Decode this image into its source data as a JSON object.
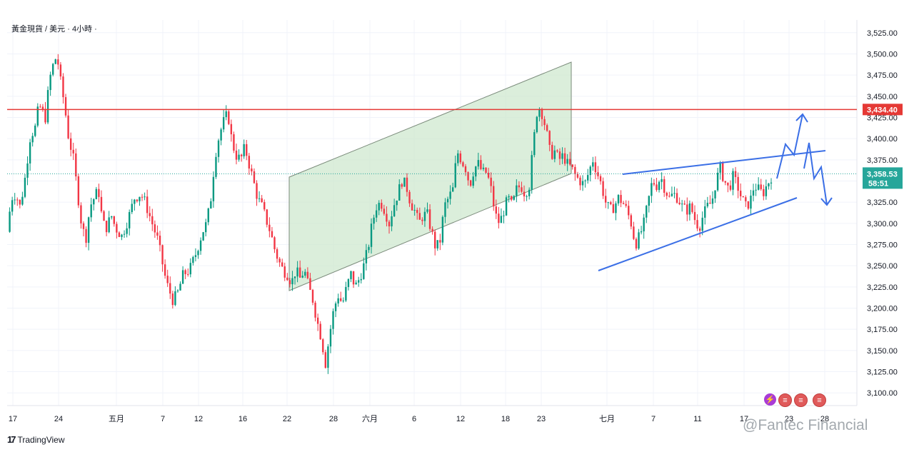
{
  "header": {
    "symbol_title": "黃金現貨 / 美元 · 4小時 ·"
  },
  "branding": {
    "logo_text": "TradingView",
    "watermark": "@Fantec Financial"
  },
  "chart_data": {
    "type": "candlestick",
    "ylim": [
      3085,
      3540
    ],
    "y_ticks": [
      3100,
      3125,
      3150,
      3175,
      3200,
      3225,
      3250,
      3275,
      3300,
      3325,
      3350,
      3375,
      3400,
      3425,
      3450,
      3475,
      3500,
      3525
    ],
    "y_tick_labels": [
      "3,100.00",
      "3,125.00",
      "3,150.00",
      "3,175.00",
      "3,200.00",
      "3,225.00",
      "3,250.00",
      "3,275.00",
      "3,300.00",
      "3,325.00",
      "3,350.00",
      "3,375.00",
      "3,400.00",
      "3,425.00",
      "3,450.00",
      "3,475.00",
      "3,500.00",
      "3,525.00"
    ],
    "x_ticks": [
      "17",
      "24",
      "五月",
      "7",
      "12",
      "16",
      "22",
      "28",
      "六月",
      "6",
      "12",
      "18",
      "23",
      "七月",
      "7",
      "11",
      "17",
      "23",
      "28"
    ],
    "grid": true,
    "price_path": [
      [
        0,
        3290
      ],
      [
        4,
        3330
      ],
      [
        8,
        3335
      ],
      [
        12,
        3320
      ],
      [
        16,
        3345
      ],
      [
        22,
        3405
      ],
      [
        26,
        3410
      ],
      [
        30,
        3440
      ],
      [
        36,
        3425
      ],
      [
        40,
        3470
      ],
      [
        44,
        3490
      ],
      [
        47,
        3498
      ],
      [
        50,
        3470
      ],
      [
        54,
        3440
      ],
      [
        58,
        3400
      ],
      [
        62,
        3380
      ],
      [
        66,
        3340
      ],
      [
        70,
        3300
      ],
      [
        74,
        3280
      ],
      [
        78,
        3320
      ],
      [
        82,
        3330
      ],
      [
        86,
        3340
      ],
      [
        90,
        3300
      ],
      [
        94,
        3295
      ],
      [
        98,
        3310
      ],
      [
        102,
        3295
      ],
      [
        108,
        3285
      ],
      [
        114,
        3305
      ],
      [
        120,
        3330
      ],
      [
        126,
        3335
      ],
      [
        130,
        3325
      ],
      [
        134,
        3310
      ],
      [
        138,
        3295
      ],
      [
        142,
        3280
      ],
      [
        146,
        3255
      ],
      [
        150,
        3230
      ],
      [
        156,
        3210
      ],
      [
        160,
        3215
      ],
      [
        166,
        3240
      ],
      [
        172,
        3245
      ],
      [
        178,
        3265
      ],
      [
        184,
        3290
      ],
      [
        188,
        3300
      ],
      [
        192,
        3330
      ],
      [
        196,
        3380
      ],
      [
        200,
        3405
      ],
      [
        204,
        3420
      ],
      [
        208,
        3430
      ],
      [
        212,
        3395
      ],
      [
        216,
        3380
      ],
      [
        220,
        3375
      ],
      [
        224,
        3390
      ],
      [
        228,
        3370
      ],
      [
        232,
        3350
      ],
      [
        236,
        3330
      ],
      [
        240,
        3320
      ],
      [
        244,
        3305
      ],
      [
        248,
        3290
      ],
      [
        252,
        3270
      ],
      [
        256,
        3255
      ],
      [
        260,
        3245
      ],
      [
        264,
        3240
      ],
      [
        268,
        3230
      ],
      [
        272,
        3245
      ],
      [
        276,
        3235
      ],
      [
        280,
        3245
      ],
      [
        284,
        3225
      ],
      [
        288,
        3210
      ],
      [
        292,
        3185
      ],
      [
        296,
        3165
      ],
      [
        300,
        3135
      ],
      [
        304,
        3170
      ],
      [
        308,
        3200
      ],
      [
        312,
        3215
      ],
      [
        316,
        3205
      ],
      [
        320,
        3225
      ],
      [
        324,
        3240
      ],
      [
        328,
        3225
      ],
      [
        332,
        3235
      ],
      [
        336,
        3250
      ],
      [
        340,
        3270
      ],
      [
        344,
        3300
      ],
      [
        348,
        3320
      ],
      [
        352,
        3325
      ],
      [
        356,
        3315
      ],
      [
        360,
        3300
      ],
      [
        364,
        3320
      ],
      [
        368,
        3335
      ],
      [
        372,
        3350
      ],
      [
        376,
        3345
      ],
      [
        380,
        3325
      ],
      [
        384,
        3315
      ],
      [
        388,
        3300
      ],
      [
        392,
        3310
      ],
      [
        396,
        3310
      ],
      [
        400,
        3290
      ],
      [
        404,
        3270
      ],
      [
        408,
        3280
      ],
      [
        412,
        3320
      ],
      [
        416,
        3330
      ],
      [
        420,
        3340
      ],
      [
        424,
        3385
      ],
      [
        428,
        3375
      ],
      [
        432,
        3365
      ],
      [
        436,
        3345
      ],
      [
        440,
        3365
      ],
      [
        444,
        3370
      ],
      [
        448,
        3360
      ],
      [
        452,
        3360
      ],
      [
        456,
        3340
      ],
      [
        460,
        3310
      ],
      [
        464,
        3300
      ],
      [
        468,
        3315
      ],
      [
        472,
        3330
      ],
      [
        476,
        3320
      ],
      [
        480,
        3340
      ],
      [
        484,
        3345
      ],
      [
        488,
        3335
      ],
      [
        492,
        3345
      ],
      [
        496,
        3395
      ],
      [
        500,
        3440
      ],
      [
        504,
        3430
      ],
      [
        508,
        3410
      ],
      [
        512,
        3380
      ],
      [
        516,
        3385
      ],
      [
        520,
        3375
      ],
      [
        524,
        3380
      ],
      [
        528,
        3370
      ],
      [
        532,
        3365
      ],
      [
        536,
        3355
      ],
      [
        540,
        3350
      ],
      [
        544,
        3345
      ],
      [
        548,
        3360
      ],
      [
        552,
        3375
      ],
      [
        556,
        3360
      ],
      [
        560,
        3345
      ],
      [
        564,
        3325
      ],
      [
        568,
        3315
      ],
      [
        572,
        3320
      ],
      [
        576,
        3330
      ],
      [
        580,
        3325
      ],
      [
        584,
        3315
      ],
      [
        588,
        3300
      ],
      [
        592,
        3275
      ],
      [
        596,
        3285
      ],
      [
        600,
        3300
      ],
      [
        604,
        3325
      ],
      [
        608,
        3350
      ],
      [
        612,
        3345
      ],
      [
        616,
        3355
      ],
      [
        620,
        3340
      ],
      [
        624,
        3330
      ],
      [
        628,
        3335
      ],
      [
        632,
        3330
      ],
      [
        636,
        3320
      ],
      [
        640,
        3315
      ],
      [
        644,
        3320
      ],
      [
        648,
        3305
      ],
      [
        652,
        3295
      ],
      [
        656,
        3310
      ],
      [
        660,
        3320
      ],
      [
        664,
        3325
      ],
      [
        668,
        3350
      ],
      [
        672,
        3365
      ],
      [
        676,
        3350
      ],
      [
        680,
        3340
      ],
      [
        684,
        3355
      ],
      [
        688,
        3345
      ],
      [
        692,
        3330
      ],
      [
        696,
        3320
      ],
      [
        700,
        3325
      ],
      [
        704,
        3345
      ],
      [
        708,
        3340
      ],
      [
        712,
        3335
      ],
      [
        716,
        3345
      ],
      [
        720,
        3355
      ]
    ],
    "annotations": {
      "resistance_level": 3434.4,
      "current_price": 3358.53,
      "countdown": "58:51"
    },
    "colors": {
      "up": "#089981",
      "down": "#f23645",
      "resistance": "#e53935",
      "trend": "#3b6fe6",
      "channel_fill": "#cfe8cf",
      "price_line": "#26a69a"
    }
  }
}
